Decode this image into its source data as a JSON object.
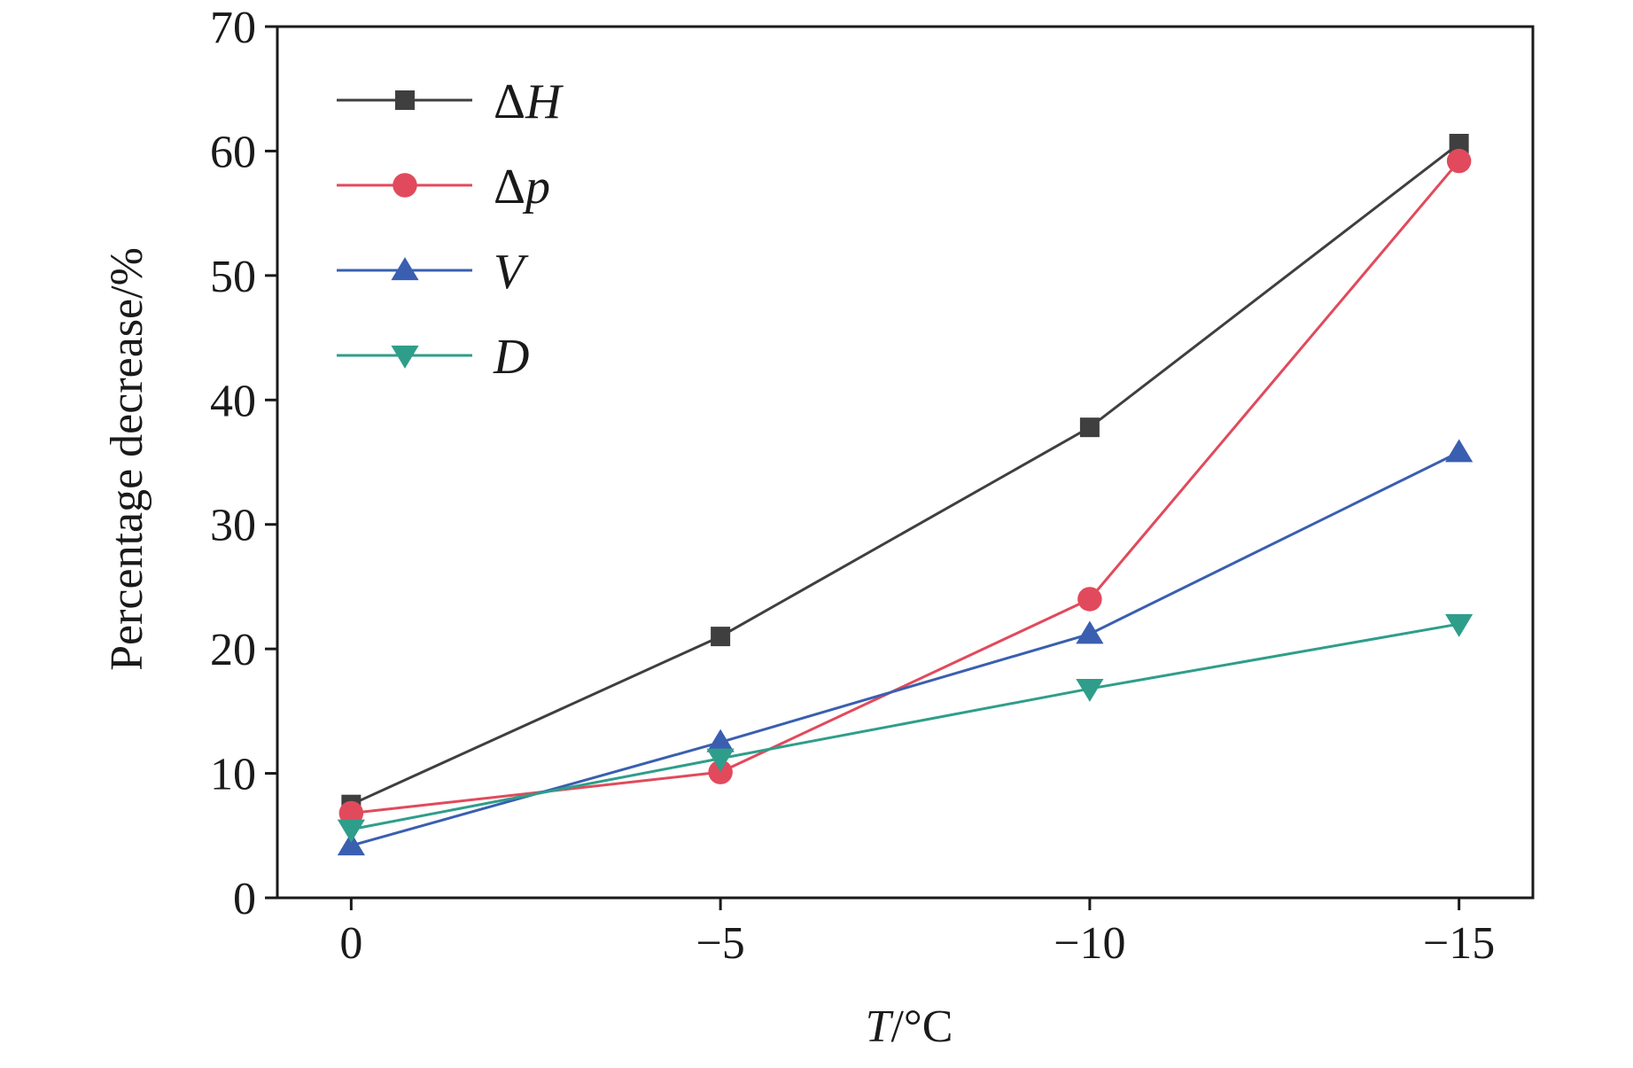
{
  "chart_data": {
    "type": "line",
    "title": "",
    "xlabel_var": "T",
    "xlabel_unit": "/°C",
    "ylabel": "Percentage decrease/%",
    "x": [
      0,
      -5,
      -10,
      -15
    ],
    "x_tick_labels": [
      "0",
      "−5",
      "−10",
      "−15"
    ],
    "xlim": [
      1,
      -16
    ],
    "ylim": [
      0,
      70
    ],
    "y_ticks": [
      0,
      10,
      20,
      30,
      40,
      50,
      60,
      70
    ],
    "grid": false,
    "legend_position": "top-left",
    "series": [
      {
        "name_sym": "Δ",
        "name_var": "H",
        "color": "#3f3f3f",
        "marker": "square",
        "values": [
          7.5,
          21.0,
          37.8,
          60.6
        ]
      },
      {
        "name_sym": "Δ",
        "name_var": "p",
        "color": "#e14a5c",
        "marker": "circle",
        "values": [
          6.8,
          10.1,
          24.0,
          59.2
        ]
      },
      {
        "name_sym": "",
        "name_var": "V",
        "color": "#3a5fb0",
        "marker": "triangle-up",
        "values": [
          4.2,
          12.5,
          21.2,
          35.8
        ]
      },
      {
        "name_sym": "",
        "name_var": "D",
        "color": "#2e9e8a",
        "marker": "triangle-down",
        "values": [
          5.5,
          11.2,
          16.8,
          22.0
        ]
      }
    ]
  }
}
